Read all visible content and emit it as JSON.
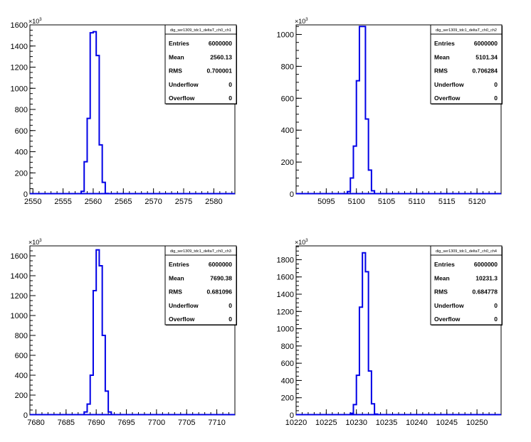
{
  "colors": {
    "histogram_line": "#0000e6",
    "axis": "#000000",
    "background": "#ffffff"
  },
  "chart_data": [
    {
      "type": "histogram",
      "title": "dig_ser1309_tdc1_deltaT_ch0_ch1",
      "xlim": [
        2549.5,
        2583.5
      ],
      "ylim": [
        0,
        1600
      ],
      "x_ticks": [
        2550,
        2555,
        2560,
        2565,
        2570,
        2575,
        2580
      ],
      "y_ticks": [
        0,
        200,
        400,
        600,
        800,
        1000,
        1200,
        1400,
        1600
      ],
      "y_multiplier": "×10",
      "y_multiplier_exp": "3",
      "bin_width": 0.5,
      "x": [
        2558,
        2558.5,
        2559,
        2559.5,
        2560,
        2560.5,
        2561,
        2561.5,
        2562
      ],
      "values": [
        25,
        305,
        715,
        1525,
        1535,
        1310,
        465,
        110,
        5
      ],
      "stats": [
        {
          "key": "Entries",
          "value": "6000000"
        },
        {
          "key": "Mean",
          "value": "2560.13"
        },
        {
          "key": "RMS",
          "value": "0.700001"
        },
        {
          "key": "Underflow",
          "value": "0"
        },
        {
          "key": "Overflow",
          "value": "0"
        }
      ]
    },
    {
      "type": "histogram",
      "title": "dig_ser1309_tdc1_deltaT_ch0_ch2",
      "xlim": [
        5090,
        5124
      ],
      "ylim": [
        0,
        1060
      ],
      "x_ticks": [
        5095,
        5100,
        5105,
        5110,
        5115,
        5120
      ],
      "y_ticks": [
        0,
        200,
        400,
        600,
        800,
        1000
      ],
      "y_multiplier": "×10",
      "y_multiplier_exp": "3",
      "bin_width": 0.5,
      "x": [
        5098.5,
        5099,
        5099.5,
        5100,
        5100.5,
        5101,
        5101.5,
        5102,
        5102.5,
        5103
      ],
      "values": [
        15,
        100,
        300,
        710,
        1050,
        1050,
        470,
        150,
        20,
        2
      ],
      "stats": [
        {
          "key": "Entries",
          "value": "6000000"
        },
        {
          "key": "Mean",
          "value": "5101.34"
        },
        {
          "key": "RMS",
          "value": "0.706284"
        },
        {
          "key": "Underflow",
          "value": "0"
        },
        {
          "key": "Overflow",
          "value": "0"
        }
      ]
    },
    {
      "type": "histogram",
      "title": "dig_ser1309_tdc1_deltaT_ch0_ch3",
      "xlim": [
        7679,
        7713
      ],
      "ylim": [
        0,
        1700
      ],
      "x_ticks": [
        7680,
        7685,
        7690,
        7695,
        7700,
        7705,
        7710
      ],
      "y_ticks": [
        0,
        200,
        400,
        600,
        800,
        1000,
        1200,
        1400,
        1600
      ],
      "y_multiplier": "×10",
      "y_multiplier_exp": "3",
      "bin_width": 0.5,
      "x": [
        7688,
        7688.5,
        7689,
        7689.5,
        7690,
        7690.5,
        7691,
        7691.5,
        7692
      ],
      "values": [
        30,
        110,
        400,
        1250,
        1660,
        1500,
        800,
        240,
        30
      ],
      "stats": [
        {
          "key": "Entries",
          "value": "6000000"
        },
        {
          "key": "Mean",
          "value": "7690.38"
        },
        {
          "key": "RMS",
          "value": "0.681096"
        },
        {
          "key": "Underflow",
          "value": "0"
        },
        {
          "key": "Overflow",
          "value": "0"
        }
      ]
    },
    {
      "type": "histogram",
      "title": "dig_ser1309_tdc1_deltaT_ch0_ch4",
      "xlim": [
        10220,
        10254
      ],
      "ylim": [
        0,
        1960
      ],
      "x_ticks": [
        10220,
        10225,
        10230,
        10235,
        10240,
        10245,
        10250
      ],
      "y_ticks": [
        0,
        200,
        400,
        600,
        800,
        1000,
        1200,
        1400,
        1600,
        1800
      ],
      "y_multiplier": "×10",
      "y_multiplier_exp": "3",
      "bin_width": 0.5,
      "x": [
        10229,
        10229.5,
        10230,
        10230.5,
        10231,
        10231.5,
        10232,
        10232.5,
        10233
      ],
      "values": [
        20,
        120,
        460,
        1250,
        1880,
        1660,
        510,
        130,
        10
      ],
      "stats": [
        {
          "key": "Entries",
          "value": "6000000"
        },
        {
          "key": "Mean",
          "value": "10231.3"
        },
        {
          "key": "RMS",
          "value": "0.684778"
        },
        {
          "key": "Underflow",
          "value": "0"
        },
        {
          "key": "Overflow",
          "value": "0"
        }
      ]
    }
  ]
}
